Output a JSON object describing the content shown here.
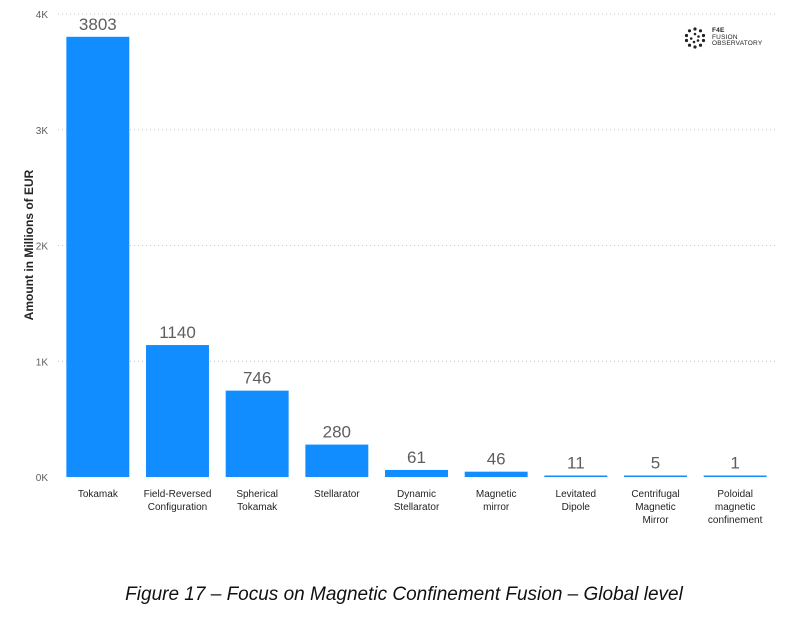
{
  "chart_data": {
    "type": "bar",
    "categories": [
      [
        "Tokamak"
      ],
      [
        "Field-Reversed",
        "Configuration"
      ],
      [
        "Spherical",
        "Tokamak"
      ],
      [
        "Stellarator"
      ],
      [
        "Dynamic",
        "Stellarator"
      ],
      [
        "Magnetic",
        "mirror"
      ],
      [
        "Levitated",
        "Dipole"
      ],
      [
        "Centrifugal",
        "Magnetic",
        "Mirror"
      ],
      [
        "Poloidal",
        "magnetic",
        "confinement"
      ]
    ],
    "values": [
      3803,
      1140,
      746,
      280,
      61,
      46,
      11,
      5,
      1
    ],
    "value_labels": [
      "3803",
      "1140",
      "746",
      "280",
      "61",
      "46",
      "11",
      "5",
      "1"
    ],
    "ylabel": "Amount in Millions of EUR",
    "yticks": [
      0,
      1000,
      2000,
      3000,
      4000
    ],
    "ytick_labels": [
      "0K",
      "1K",
      "2K",
      "3K",
      "4K"
    ],
    "ylim": [
      0,
      4000
    ],
    "grid": true,
    "bar_color": "#118DFF"
  },
  "logo": {
    "line1": "F4E",
    "line2": "FUSION",
    "line3": "OBSERVATORY"
  },
  "caption": "Figure 17 – Focus on Magnetic Confinement Fusion – Global level"
}
